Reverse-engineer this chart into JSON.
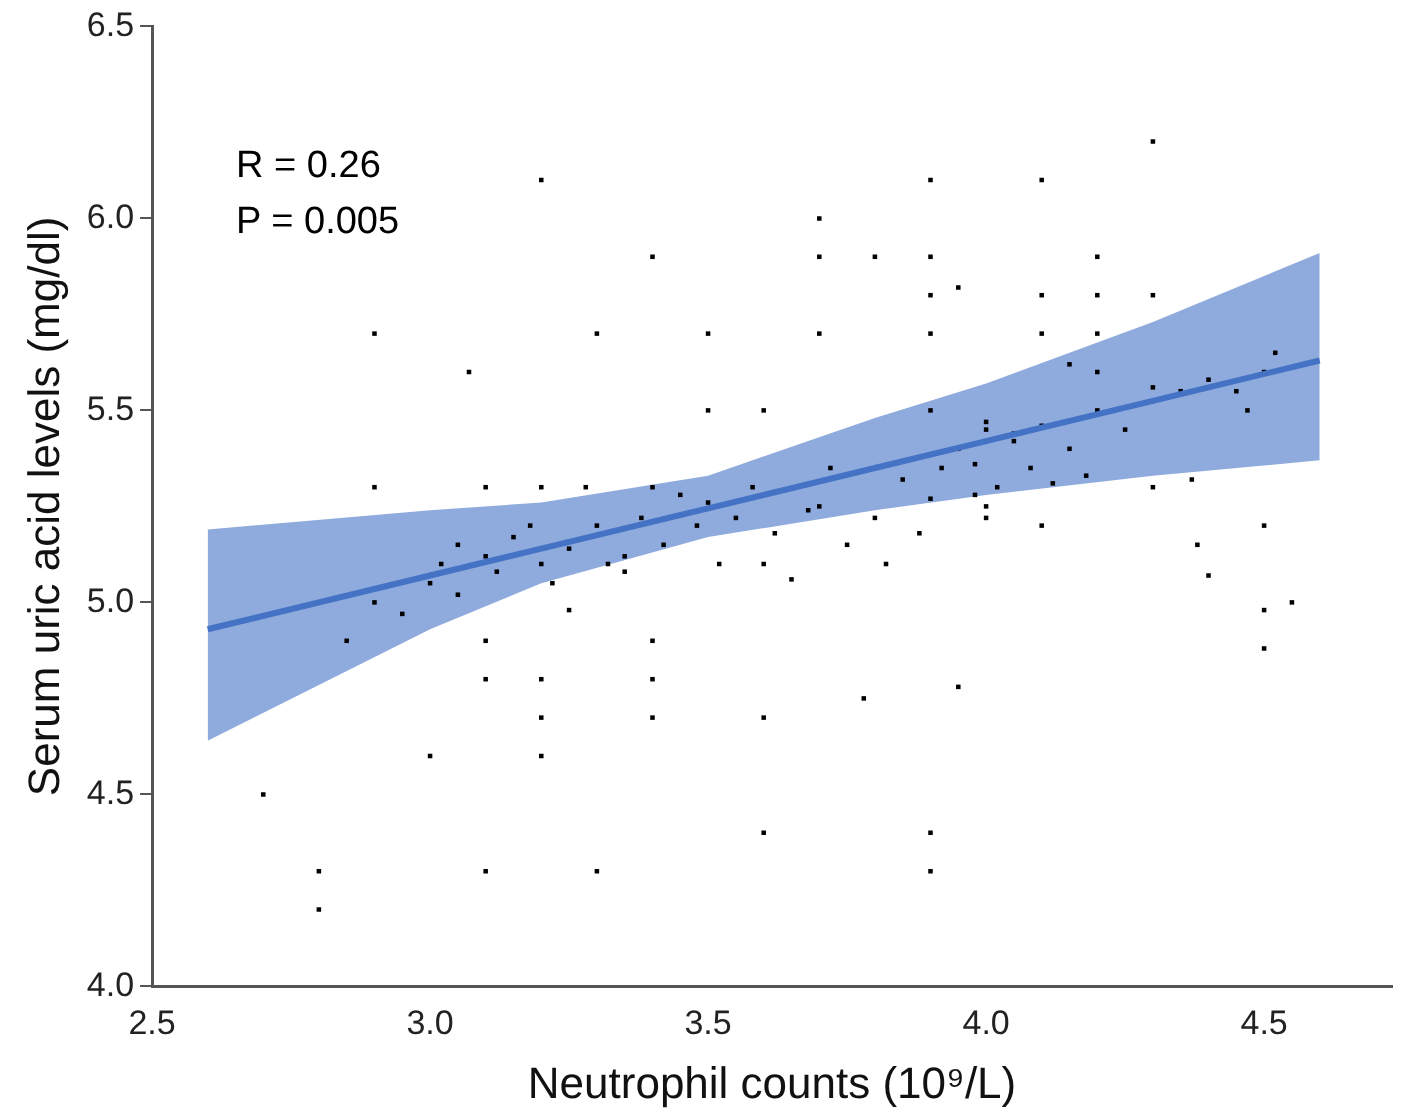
{
  "chart_data": {
    "type": "scatter",
    "xlabel": "Neutrophil counts (10⁹/L)",
    "ylabel": "Serum uric acid levels (mg/dl)",
    "xlim": [
      2.5,
      4.73
    ],
    "ylim": [
      4.0,
      6.5
    ],
    "xticks": [
      {
        "value": 2.5,
        "label": "2.5"
      },
      {
        "value": 3.0,
        "label": "3.0"
      },
      {
        "value": 3.5,
        "label": "3.5"
      },
      {
        "value": 4.0,
        "label": "4.0"
      },
      {
        "value": 4.5,
        "label": "4.5"
      }
    ],
    "yticks": [
      {
        "value": 4.0,
        "label": "4.0"
      },
      {
        "value": 4.5,
        "label": "4.5"
      },
      {
        "value": 5.0,
        "label": "5.0"
      },
      {
        "value": 5.5,
        "label": "5.5"
      },
      {
        "value": 6.0,
        "label": "6.0"
      },
      {
        "value": 6.5,
        "label": "6.5"
      }
    ],
    "grid": false,
    "legend": false,
    "marker": "square",
    "annotations": [
      "R = 0.26",
      "P = 0.005"
    ],
    "series": [
      {
        "color": "#000000",
        "x": [
          3.2,
          2.9,
          3.07,
          2.9,
          3.1,
          3.2,
          3.3,
          3.4,
          3.5,
          3.5,
          3.6,
          3.7,
          3.7,
          3.7,
          3.8,
          3.9,
          3.9,
          3.9,
          3.9,
          3.9,
          3.95,
          4.1,
          4.2,
          4.2,
          4.3,
          4.1,
          4.2,
          4.3,
          4.1,
          4.2,
          4.45,
          4.4,
          4.3,
          4.15,
          4.05,
          4.0,
          4.37,
          4.5,
          4.47,
          4.52,
          2.7,
          2.8,
          2.8,
          3.0,
          3.1,
          3.2,
          3.3,
          3.4,
          3.4,
          3.4,
          3.6,
          3.6,
          3.9,
          3.9,
          3.1,
          3.2,
          3.2,
          3.1,
          2.85,
          3.78,
          3.95,
          4.5,
          4.5,
          4.55,
          4.4,
          4.5,
          4.38,
          4.0,
          2.9,
          2.95,
          3.0,
          3.02,
          3.05,
          3.1,
          3.12,
          3.15,
          3.18,
          3.2,
          3.22,
          3.25,
          3.28,
          3.3,
          3.32,
          3.35,
          3.38,
          3.4,
          3.42,
          3.45,
          3.48,
          3.5,
          3.52,
          3.55,
          3.58,
          3.6,
          3.62,
          3.65,
          3.68,
          3.7,
          3.72,
          3.75,
          3.8,
          3.82,
          3.85,
          3.88,
          3.9,
          3.92,
          3.95,
          3.98,
          4.0,
          4.02,
          4.05,
          4.08,
          4.1,
          4.12,
          4.15,
          4.18,
          4.2,
          4.25,
          4.3,
          4.35,
          4.1,
          4.0,
          3.98,
          3.05,
          3.25,
          3.35
        ],
        "values": [
          6.1,
          5.7,
          5.6,
          5.3,
          5.3,
          5.3,
          5.7,
          5.9,
          5.7,
          5.5,
          5.5,
          6.0,
          5.9,
          5.7,
          5.9,
          6.1,
          5.9,
          5.8,
          5.7,
          5.5,
          5.82,
          6.1,
          5.9,
          5.8,
          6.2,
          5.8,
          5.7,
          5.8,
          5.7,
          5.6,
          5.55,
          5.58,
          5.56,
          5.62,
          5.44,
          5.45,
          5.32,
          5.6,
          5.5,
          5.65,
          4.5,
          4.3,
          4.2,
          4.6,
          4.3,
          4.6,
          4.3,
          4.9,
          4.8,
          4.7,
          4.7,
          4.4,
          4.4,
          4.3,
          4.8,
          4.8,
          4.7,
          4.9,
          4.9,
          4.75,
          4.78,
          4.88,
          4.98,
          5.0,
          5.07,
          5.2,
          5.15,
          5.25,
          5.0,
          4.97,
          5.05,
          5.1,
          5.15,
          5.12,
          5.08,
          5.17,
          5.2,
          5.1,
          5.05,
          5.14,
          5.3,
          5.2,
          5.1,
          5.12,
          5.22,
          5.3,
          5.15,
          5.28,
          5.2,
          5.26,
          5.1,
          5.22,
          5.3,
          5.1,
          5.18,
          5.06,
          5.24,
          5.25,
          5.35,
          5.15,
          5.22,
          5.1,
          5.32,
          5.18,
          5.27,
          5.35,
          5.4,
          5.28,
          5.47,
          5.3,
          5.42,
          5.35,
          5.46,
          5.31,
          5.4,
          5.33,
          5.5,
          5.45,
          5.3,
          5.55,
          5.2,
          5.22,
          5.36,
          5.02,
          4.98,
          5.08
        ]
      },
      {
        "type": "line",
        "color": "#4472c4",
        "marker": "none",
        "x": [
          2.6,
          3.0,
          3.2,
          3.5,
          3.8,
          4.0,
          4.3,
          4.6
        ],
        "values": [
          4.93,
          5.07,
          5.14,
          5.245,
          5.35,
          5.42,
          5.525,
          5.63
        ],
        "lower": [
          4.64,
          4.93,
          5.05,
          5.17,
          5.24,
          5.28,
          5.33,
          5.37
        ],
        "upper": [
          5.19,
          5.24,
          5.26,
          5.33,
          5.48,
          5.57,
          5.73,
          5.91
        ]
      }
    ]
  }
}
